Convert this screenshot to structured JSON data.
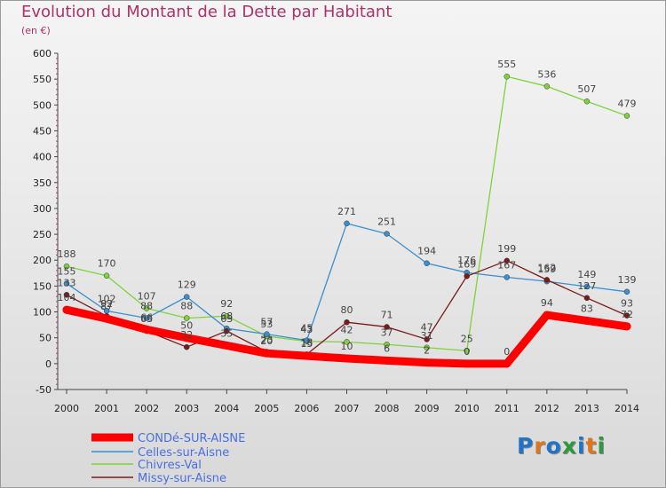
{
  "title": "Evolution du Montant de la Dette par Habitant",
  "unit": "(en €)",
  "logo": {
    "text": "Proxiti",
    "colors": [
      "#1f74c8",
      "#e0761b",
      "#1f74c8",
      "#2c9a3c",
      "#1f74c8",
      "#e0761b",
      "#2c9a3c"
    ]
  },
  "chart_data": {
    "type": "line",
    "title": "Evolution du Montant de la Dette par Habitant",
    "ylabel": "(en €)",
    "xlabel": "",
    "ylim": [
      -50,
      600
    ],
    "y_ticks": [
      -50,
      0,
      50,
      100,
      150,
      200,
      250,
      300,
      350,
      400,
      450,
      500,
      550,
      600
    ],
    "grid": false,
    "legend_position": "bottom-left",
    "categories": [
      "2000",
      "2001",
      "2002",
      "2003",
      "2004",
      "2005",
      "2006",
      "2007",
      "2008",
      "2009",
      "2010",
      "2011",
      "2012",
      "2013",
      "2014"
    ],
    "series": [
      {
        "name": "CONDé-SUR-AISNE",
        "color": "#ff0000",
        "values": [
          104,
          87,
          66,
          50,
          35,
          20,
          15,
          10,
          6,
          2,
          0,
          0,
          94,
          83,
          72
        ],
        "labels": [
          "104",
          "87",
          "66",
          "50",
          "35",
          "20",
          "15",
          "10",
          "6",
          "2",
          "0",
          "0",
          "94",
          "83",
          "72"
        ]
      },
      {
        "name": "Celles-sur-Aisne",
        "color": "#3a8fd0",
        "values": [
          155,
          102,
          88,
          129,
          68,
          57,
          45,
          271,
          251,
          194,
          176,
          167,
          159,
          149,
          139
        ],
        "labels": [
          "155",
          "102",
          "88",
          "129",
          "68",
          "57",
          "45",
          "271",
          "251",
          "194",
          "176",
          "167",
          "159",
          "149",
          "139"
        ]
      },
      {
        "name": "Chivres-Val",
        "color": "#7dd33c",
        "values": [
          188,
          170,
          107,
          88,
          92,
          53,
          43,
          42,
          37,
          31,
          25,
          555,
          536,
          507,
          479
        ],
        "labels": [
          "188",
          "170",
          "107",
          "88",
          "92",
          "53",
          "43",
          "42",
          "37",
          "31",
          "25",
          "555",
          "536",
          "507",
          "479"
        ]
      },
      {
        "name": "Missy-sur-Aisne",
        "color": "#7a1a1a",
        "values": [
          133,
          92,
          63,
          32,
          63,
          23,
          18,
          80,
          71,
          47,
          169,
          199,
          162,
          127,
          93
        ],
        "labels": [
          "133",
          "92",
          "63",
          "32",
          "63",
          "23",
          "18",
          "80",
          "71",
          "47",
          "169",
          "199",
          "162",
          "127",
          "93"
        ]
      }
    ]
  }
}
